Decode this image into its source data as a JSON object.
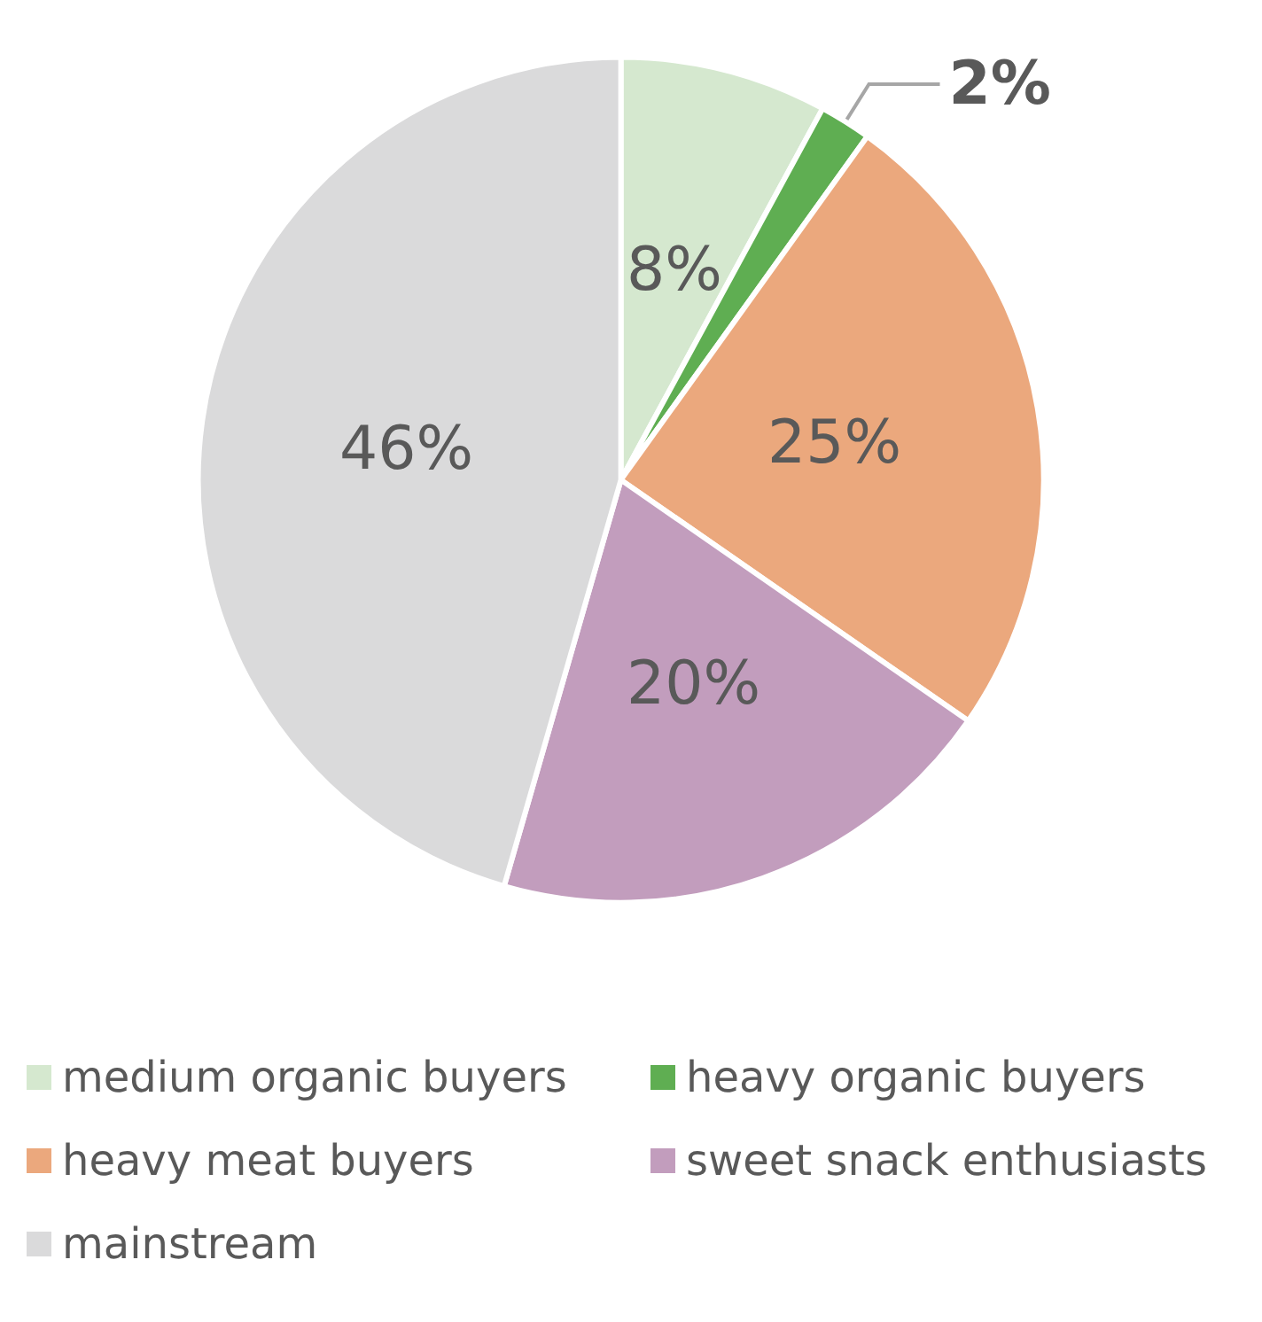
{
  "chart_data": {
    "type": "pie",
    "categories": [
      "medium organic buyers",
      "heavy organic buyers",
      "heavy meat buyers",
      "sweet snack enthusiasts",
      "mainstream"
    ],
    "values": [
      8,
      2,
      25,
      20,
      46
    ],
    "colors": [
      "#d5e8cf",
      "#5fae52",
      "#eba87d",
      "#c29dbd",
      "#dadadb"
    ],
    "value_labels": [
      "8%",
      "2%",
      "25%",
      "20%",
      "46%"
    ],
    "legend": "bottom"
  }
}
